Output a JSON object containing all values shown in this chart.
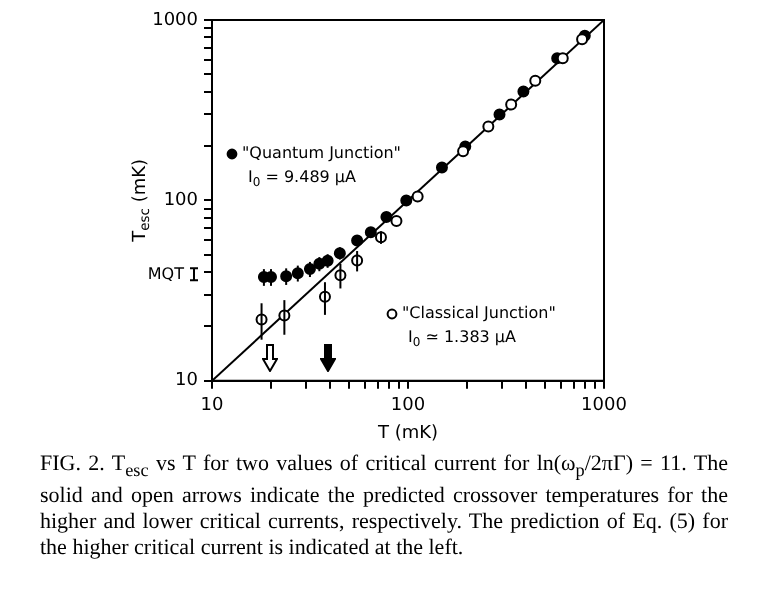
{
  "chart_data": {
    "type": "scatter",
    "xlabel": "T (mK)",
    "ylabel": "T$_{esc}$ (mK)",
    "log": "xy",
    "grid": false,
    "legend": "left",
    "marker": "circle",
    "xlim": [
      10,
      1000
    ],
    "ylim": [
      10,
      1000
    ],
    "xticks": [
      10,
      {
        "value": 20,
        "label": null
      },
      {
        "value": 30,
        "label": null
      },
      {
        "value": 40,
        "label": null
      },
      {
        "value": 50,
        "label": null
      },
      {
        "value": 60,
        "label": null
      },
      {
        "value": 70,
        "label": null
      },
      {
        "value": 80,
        "label": null
      },
      {
        "value": 90,
        "label": null
      },
      100,
      {
        "value": 200,
        "label": null
      },
      {
        "value": 300,
        "label": null
      },
      {
        "value": 400,
        "label": null
      },
      {
        "value": 500,
        "label": null
      },
      {
        "value": 600,
        "label": null
      },
      {
        "value": 700,
        "label": null
      },
      {
        "value": 800,
        "label": null
      },
      {
        "value": 900,
        "label": null
      },
      1000
    ],
    "yticks": [
      10,
      {
        "value": 20,
        "label": null
      },
      {
        "value": 30,
        "label": null
      },
      {
        "value": 40,
        "label": null
      },
      {
        "value": 50,
        "label": null
      },
      {
        "value": 60,
        "label": null
      },
      {
        "value": 70,
        "label": null
      },
      {
        "value": 80,
        "label": null
      },
      {
        "value": 90,
        "label": null
      },
      100,
      {
        "value": 200,
        "label": null
      },
      {
        "value": 300,
        "label": null
      },
      {
        "value": 400,
        "label": null
      },
      {
        "value": 500,
        "label": null
      },
      {
        "value": 600,
        "label": null
      },
      {
        "value": 700,
        "label": null
      },
      {
        "value": 800,
        "label": null
      },
      {
        "value": 900,
        "label": null
      },
      1000
    ],
    "series": [
      {
        "name": "\"Quantum Junction\"",
        "color": "#000000",
        "x": [
          18.4,
          20,
          23.9,
          27.4,
          31.6,
          35.3,
          38.9,
          44.9,
          55,
          64.6,
          77.6,
          98,
          149,
          196,
          293,
          388,
          577,
          798
        ],
        "values": [
          37.6,
          37.6,
          38,
          39.5,
          41.6,
          44.5,
          46.3,
          51,
          60,
          66.5,
          81,
          100,
          152,
          199,
          299,
          402,
          613,
          817
        ],
        "errors": [
          4,
          4,
          4,
          4,
          4,
          4,
          4,
          4,
          4,
          null,
          null,
          null,
          null,
          null,
          null,
          null,
          null,
          null
        ]
      },
      {
        "name": "\"Classical Junction\"",
        "color": "#000000",
        "x": [
          17.9,
          23.4,
          37.7,
          45.2,
          55,
          72.8,
          87.3,
          112,
          191,
          257,
          336,
          446,
          616,
          773
        ],
        "values": [
          21.9,
          23,
          29.2,
          38.5,
          46.4,
          62.4,
          76.9,
          105,
          187,
          257,
          340,
          460,
          613,
          783
        ],
        "errors": [
          5,
          5,
          6,
          6,
          6,
          5,
          null,
          null,
          null,
          null,
          null,
          null,
          null,
          null
        ]
      },
      {
        "type": "line",
        "marker": "none",
        "color": "#000000",
        "x": [
          10,
          1000
        ],
        "values": [
          10,
          1000
        ]
      }
    ],
    "annotations": [
      "MQT",
      "I$_{0}$ = 9.489 μA",
      "I$_{0}$ ≃ 1.383 μA",
      "FIG. 2. T$_{esc}$ vs T for two values of critical current for ln(ω$_{p}$/2πΓ) = 11. The solid and open arrows indicate the predicted crossover temperatures for the higher and lower critical currents, respectively. The prediction of Eq. (5) for the higher critical current is indicated at the left."
    ]
  }
}
